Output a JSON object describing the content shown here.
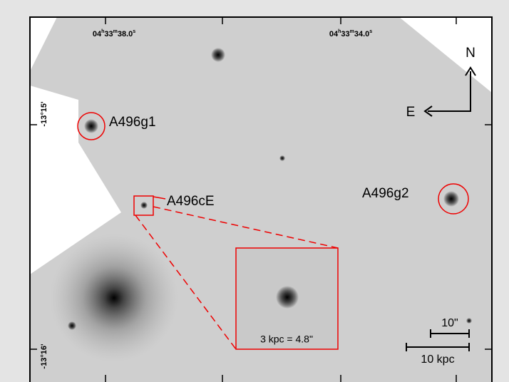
{
  "ra_labels": [
    {
      "hours": "04",
      "h": "h",
      "minutes": "33",
      "m": "m",
      "seconds": "38.0",
      "s": "s"
    },
    {
      "hours": "04",
      "h": "h",
      "minutes": "33",
      "m": "m",
      "seconds": "34.0",
      "s": "s"
    }
  ],
  "dec_labels": [
    "-13°15'",
    "-13°16'"
  ],
  "compass": {
    "north": "N",
    "east": "E"
  },
  "objects": [
    "A496g1",
    "A496cE",
    "A496g2"
  ],
  "inset_label": "3 kpc = 4.8\"",
  "scale_bars": [
    "10\"",
    "10 kpc"
  ]
}
